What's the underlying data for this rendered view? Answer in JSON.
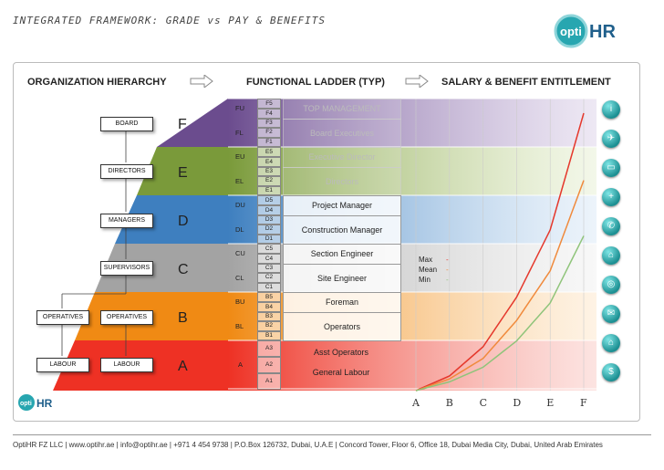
{
  "title": "INTEGRATED FRAMEWORK: GRADE vs PAY & BENEFITS",
  "logo": {
    "prefix": "opti",
    "suffix": "HR",
    "small_prefix": "opti",
    "small_suffix": "HR"
  },
  "headers": {
    "org": "ORGANIZATION HIERARCHY",
    "ladder": "FUNCTIONAL LADDER (TYP)",
    "salary": "SALARY & BENEFIT ENTITLEMENT"
  },
  "org": {
    "board": "BOARD",
    "directors": "DIRECTORS",
    "managers": "MANAGERS",
    "supervisors": "SUPERVISORS",
    "operatives_left": "OPERATIVES",
    "operatives_right": "OPERATIVES",
    "labour_left": "LABOUR",
    "labour_right": "LABOUR"
  },
  "bands": [
    "F",
    "E",
    "D",
    "C",
    "B",
    "A"
  ],
  "colors": {
    "F": "#6b4c8e",
    "E": "#7a9a3a",
    "D": "#3e7fbf",
    "C": "#a3a3a3",
    "B": "#f08a14",
    "A": "#ee3124"
  },
  "ladder": {
    "levels": [
      {
        "code": "FU",
        "grades": [
          "F5",
          "F4"
        ],
        "title": "TOP MANAGEMENT",
        "pale": true
      },
      {
        "code": "FL",
        "grades": [
          "F3",
          "F2",
          "F1"
        ],
        "title": "Board Executives",
        "pale": true
      },
      {
        "code": "EU",
        "grades": [
          "E5",
          "E4"
        ],
        "title": "Executive Director",
        "pale": true
      },
      {
        "code": "EL",
        "grades": [
          "E3",
          "E2",
          "E1"
        ],
        "title": "Directors",
        "pale": true
      },
      {
        "code": "DU",
        "grades": [
          "D5",
          "D4"
        ],
        "title": "Project Manager",
        "pale": false
      },
      {
        "code": "DL",
        "grades": [
          "D3",
          "D2",
          "D1"
        ],
        "title": "Construction Manager",
        "pale": false
      },
      {
        "code": "CU",
        "grades": [
          "C5",
          "C4"
        ],
        "title": "Section Engineer",
        "pale": false
      },
      {
        "code": "CL",
        "grades": [
          "C3",
          "C2",
          "C1"
        ],
        "title": "Site Engineer",
        "pale": false
      },
      {
        "code": "BU",
        "grades": [
          "B5",
          "B4"
        ],
        "title": "Foreman",
        "pale": false
      },
      {
        "code": "BL",
        "grades": [
          "B3",
          "B2",
          "B1"
        ],
        "title": "Operators",
        "pale": false
      }
    ],
    "a_level": {
      "code": "A",
      "grades": [
        "A3",
        "A2",
        "A1"
      ],
      "titles": [
        "Asst Operators",
        "General Labour"
      ]
    }
  },
  "chart_data": {
    "type": "line",
    "categories": [
      "A",
      "B",
      "C",
      "D",
      "E",
      "F"
    ],
    "series": [
      {
        "name": "Max",
        "color": "#e5382c",
        "values": [
          0,
          0.05,
          0.15,
          0.32,
          0.55,
          0.95
        ]
      },
      {
        "name": "Mean",
        "color": "#f08a3c",
        "values": [
          0,
          0.04,
          0.11,
          0.24,
          0.41,
          0.72
        ]
      },
      {
        "name": "Min",
        "color": "#8fc47a",
        "values": [
          0,
          0.03,
          0.08,
          0.17,
          0.3,
          0.53
        ]
      }
    ],
    "legend": {
      "max": "Max",
      "mean": "Mean",
      "min": "Min",
      "dash": "-"
    },
    "xlabel": "",
    "ylabel": "",
    "grid": true
  },
  "icons": [
    "info-icon",
    "plane-icon",
    "vehicle-icon",
    "medical-icon",
    "phone-icon",
    "bed-icon",
    "globe-icon",
    "mail-icon",
    "house-icon",
    "money-icon"
  ],
  "icon_glyphs": [
    "i",
    "✈",
    "▭",
    "+",
    "✆",
    "⌂",
    "◎",
    "✉",
    "⌂",
    "$"
  ],
  "footer": "OptiHR FZ LLC  |  www.optihr.ae  |  info@optihr.ae  |  +971 4 454 9738  |  P.O.Box 126732, Dubai, U.A.E  |  Concord Tower, Floor 6, Office 18, Dubai Media City, Dubai, United Arab Emirates"
}
